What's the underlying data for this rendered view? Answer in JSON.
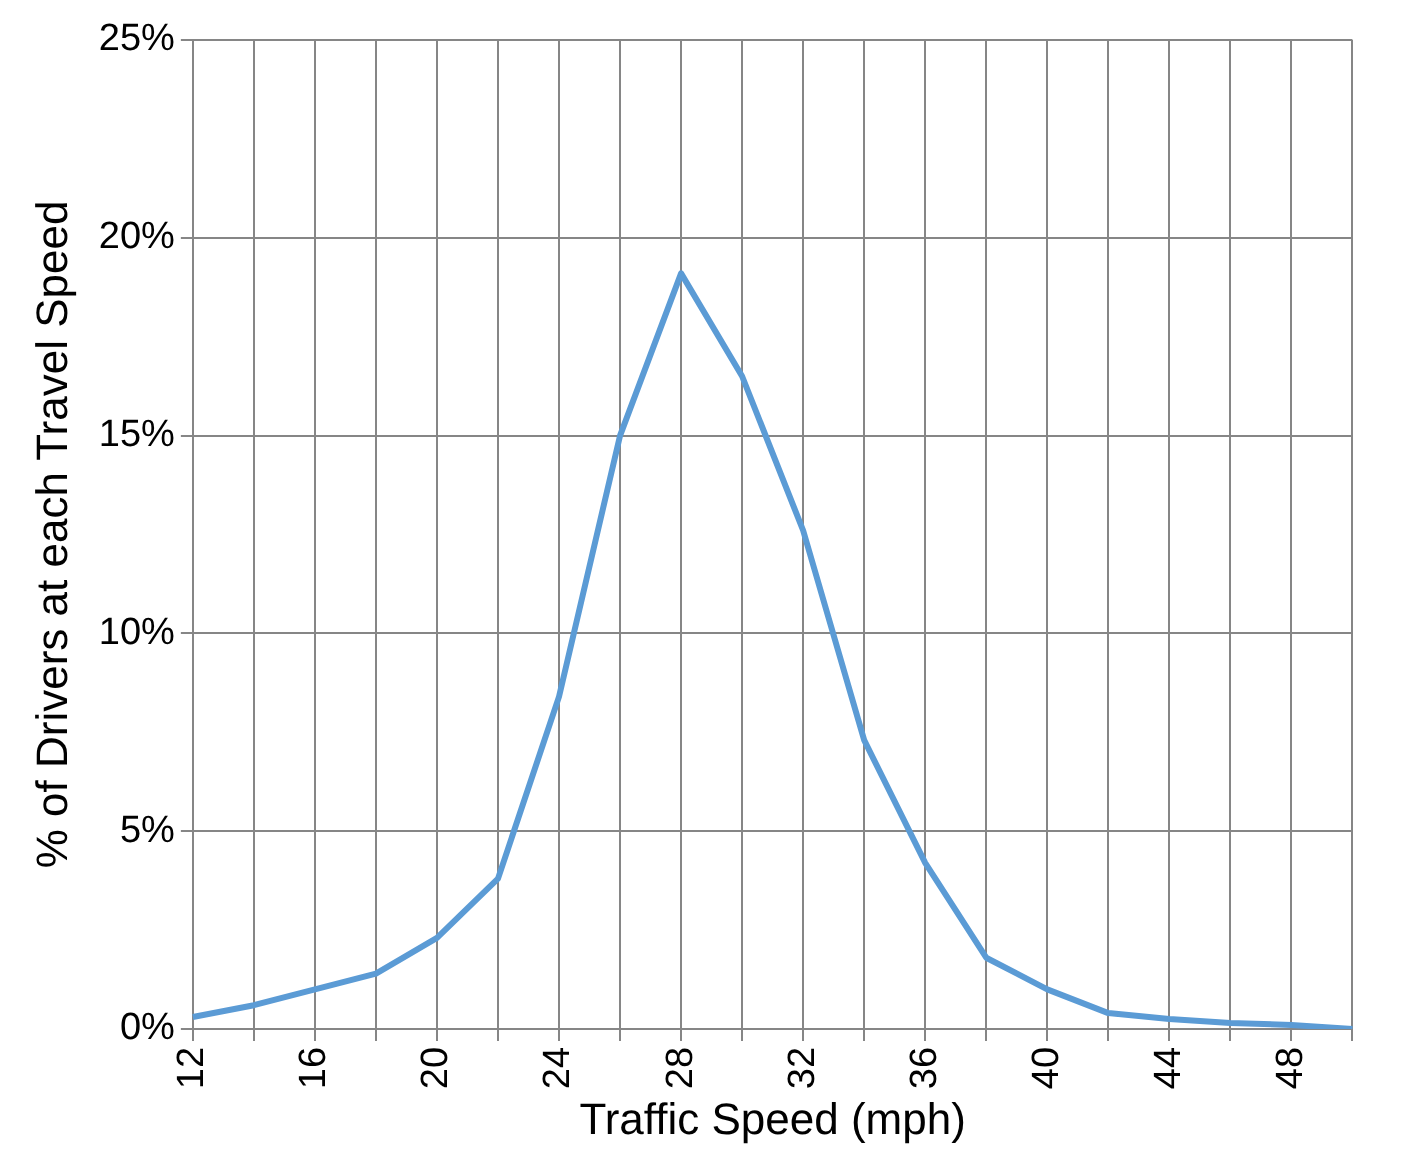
{
  "chart_data": {
    "type": "line",
    "xlabel": "Traffic Speed (mph)",
    "ylabel": "% of Drivers at each Travel Speed",
    "categories": [
      "12",
      null,
      "16",
      null,
      "20",
      null,
      "24",
      null,
      "28",
      null,
      "32",
      null,
      "36",
      null,
      "40",
      null,
      "44",
      null,
      "48",
      null
    ],
    "series": [
      {
        "color": "#5b9bd5",
        "values": [
          0.3,
          0.6,
          1.0,
          1.4,
          2.3,
          3.8,
          8.4,
          15.0,
          19.1,
          16.5,
          12.6,
          7.3,
          4.2,
          1.8,
          1.0,
          0.4,
          0.25,
          0.15,
          0.1,
          0.0
        ]
      }
    ],
    "ylim": [
      0,
      25
    ],
    "yticks": [
      {
        "value": 0,
        "label": "0%"
      },
      {
        "value": 5,
        "label": "5%"
      },
      {
        "value": 10,
        "label": "10%"
      },
      {
        "value": 15,
        "label": "15%"
      },
      {
        "value": 20,
        "label": "20%"
      },
      {
        "value": 25,
        "label": "25%"
      }
    ],
    "grid": true,
    "legend": false,
    "marker": "none",
    "line_style": "solid"
  }
}
